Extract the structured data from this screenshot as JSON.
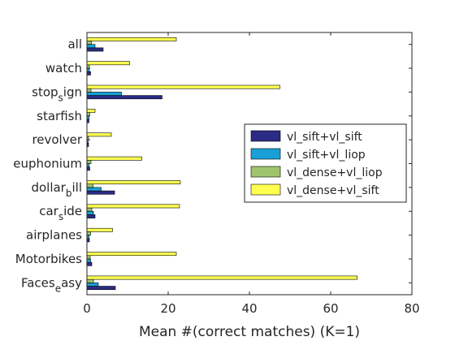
{
  "chart_data": {
    "type": "bar",
    "orientation": "horizontal",
    "categories": [
      {
        "base": "Faces",
        "sub": "e",
        "rest": "asy"
      },
      {
        "base": "Motorbikes",
        "sub": "",
        "rest": ""
      },
      {
        "base": "airplanes",
        "sub": "",
        "rest": ""
      },
      {
        "base": "car",
        "sub": "s",
        "rest": "ide"
      },
      {
        "base": "dollar",
        "sub": "b",
        "rest": "ill"
      },
      {
        "base": "euphonium",
        "sub": "",
        "rest": ""
      },
      {
        "base": "revolver",
        "sub": "",
        "rest": ""
      },
      {
        "base": "starfish",
        "sub": "",
        "rest": ""
      },
      {
        "base": "stop",
        "sub": "s",
        "rest": "ign"
      },
      {
        "base": "watch",
        "sub": "",
        "rest": ""
      },
      {
        "base": "all",
        "sub": "",
        "rest": ""
      }
    ],
    "series": [
      {
        "name": "vl_sift+vl_sift",
        "color": "#2b2b86",
        "values": [
          7.0,
          1.2,
          0.6,
          2.0,
          6.8,
          0.7,
          0.4,
          0.5,
          18.5,
          0.9,
          4.0
        ]
      },
      {
        "name": "vl_sift+vl_liop",
        "color": "#1aa0d6",
        "values": [
          2.8,
          0.9,
          0.5,
          1.6,
          3.5,
          0.5,
          0.3,
          0.5,
          8.5,
          0.6,
          2.0
        ]
      },
      {
        "name": "vl_dense+vl_liop",
        "color": "#9ec56b",
        "values": [
          1.6,
          0.8,
          0.9,
          1.2,
          1.5,
          1.0,
          0.4,
          0.7,
          1.0,
          0.6,
          1.1
        ]
      },
      {
        "name": "vl_dense+vl_sift",
        "color": "#ffff50",
        "values": [
          66.5,
          22.0,
          6.3,
          22.8,
          23.0,
          13.5,
          6.0,
          2.0,
          47.5,
          10.5,
          22.0
        ]
      }
    ],
    "xlabel": "Mean #(correct matches) (K=1)",
    "xlim": [
      0,
      80
    ],
    "xticks": [
      0,
      20,
      40,
      60,
      80
    ],
    "grid": false,
    "legend_position": "right"
  }
}
